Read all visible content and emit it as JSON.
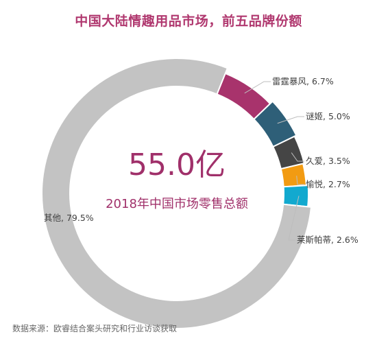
{
  "chart_data": {
    "type": "pie",
    "title": "中国大陆情趣用品市场，前五品牌份额",
    "center_value": "55.0亿",
    "center_caption": "2018年中国市场零售总额",
    "slices": [
      {
        "name": "雷霆暴风",
        "value": 6.7,
        "label": "雷霆暴风, 6.7%",
        "color": "#a8336c"
      },
      {
        "name": "谜姬",
        "value": 5.0,
        "label": "谜姬, 5.0%",
        "color": "#2e5f78"
      },
      {
        "name": "久爱",
        "value": 3.5,
        "label": "久爱, 3.5%",
        "color": "#454545"
      },
      {
        "name": "愉悦",
        "value": 2.7,
        "label": "愉悦, 2.7%",
        "color": "#f29b12"
      },
      {
        "name": "莱斯帕蒂",
        "value": 2.6,
        "label": "莱斯帕蒂, 2.6%",
        "color": "#12a9cf"
      },
      {
        "name": "其他",
        "value": 79.5,
        "label": "其他, 79.5%",
        "color": "#c3c3c3"
      }
    ],
    "source": "数据来源：欧睿结合案头研究和行业访谈获取"
  }
}
